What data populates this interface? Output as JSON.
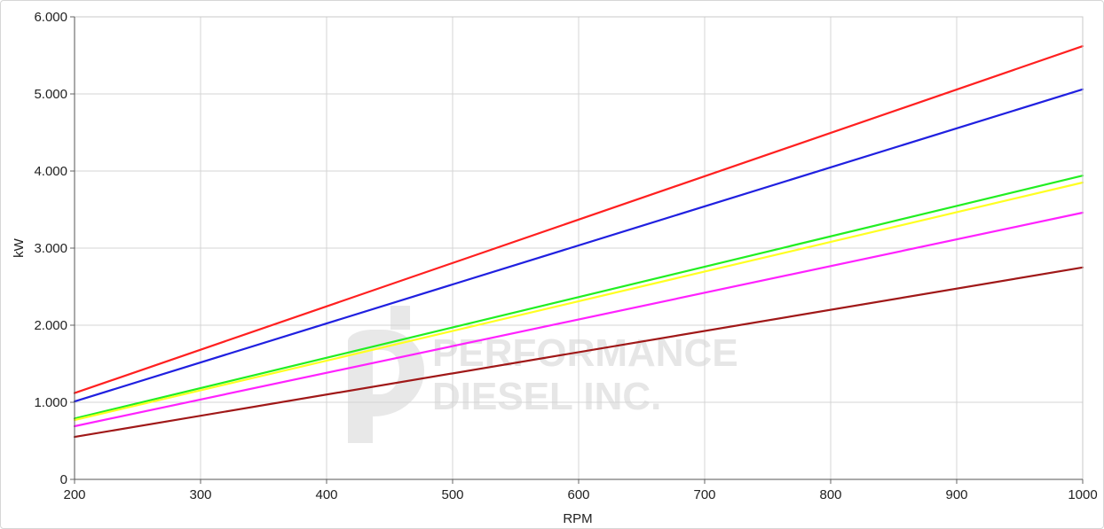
{
  "chart_data": {
    "type": "line",
    "title": "",
    "xlabel": "RPM",
    "ylabel": "kW",
    "xlim": [
      200,
      1000
    ],
    "ylim": [
      0,
      6
    ],
    "x_ticks": [
      200,
      300,
      400,
      500,
      600,
      700,
      800,
      900,
      1000
    ],
    "x_tick_labels": [
      "200",
      "300",
      "400",
      "500",
      "600",
      "700",
      "800",
      "900",
      "1000"
    ],
    "y_ticks": [
      0,
      1,
      2,
      3,
      4,
      5,
      6
    ],
    "y_tick_labels": [
      "0",
      "1.000",
      "2.000",
      "3.000",
      "4.000",
      "5.000",
      "6.000"
    ],
    "grid": true,
    "legend": "none",
    "x": [
      200,
      1000
    ],
    "series": [
      {
        "color": "#ff2020",
        "values": [
          1.12,
          5.62
        ]
      },
      {
        "color": "#2020e0",
        "values": [
          1.01,
          5.06
        ]
      },
      {
        "color": "#22ee22",
        "values": [
          0.79,
          3.94
        ]
      },
      {
        "color": "#ffff22",
        "values": [
          0.77,
          3.85
        ]
      },
      {
        "color": "#ff22ff",
        "values": [
          0.69,
          3.46
        ]
      },
      {
        "color": "#a01818",
        "values": [
          0.55,
          2.75
        ]
      }
    ]
  },
  "watermark": {
    "line1": "PERFORMANCE",
    "line2": "DIESEL INC."
  }
}
